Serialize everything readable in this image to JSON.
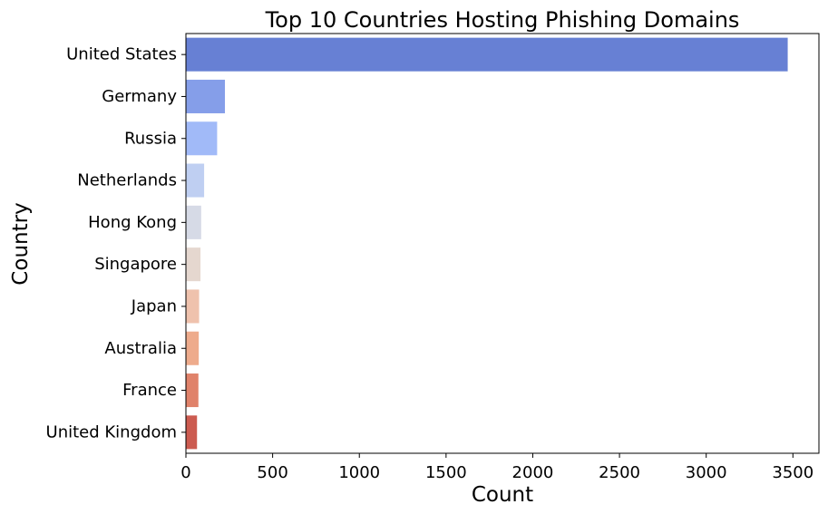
{
  "chart_data": {
    "type": "bar",
    "orientation": "horizontal",
    "title": "Top 10 Countries Hosting Phishing Domains",
    "xlabel": "Count",
    "ylabel": "Country",
    "xlim": [
      0,
      3650
    ],
    "xticks": [
      0,
      500,
      1000,
      1500,
      2000,
      2500,
      3000,
      3500
    ],
    "xtick_labels": [
      "0",
      "500",
      "1000",
      "1500",
      "2000",
      "2500",
      "3000",
      "3500"
    ],
    "categories": [
      "United States",
      "Germany",
      "Russia",
      "Netherlands",
      "Hong Kong",
      "Singapore",
      "Japan",
      "Australia",
      "France",
      "United Kingdom"
    ],
    "values": [
      3470,
      225,
      180,
      105,
      88,
      84,
      76,
      74,
      72,
      64
    ],
    "colors": [
      "#6780d4",
      "#859ee9",
      "#a1baf8",
      "#bfcff2",
      "#d6dae6",
      "#e5d7cf",
      "#efc2ad",
      "#eeab8c",
      "#e0826a",
      "#cc5b50"
    ],
    "grid": false,
    "legend": "none"
  }
}
